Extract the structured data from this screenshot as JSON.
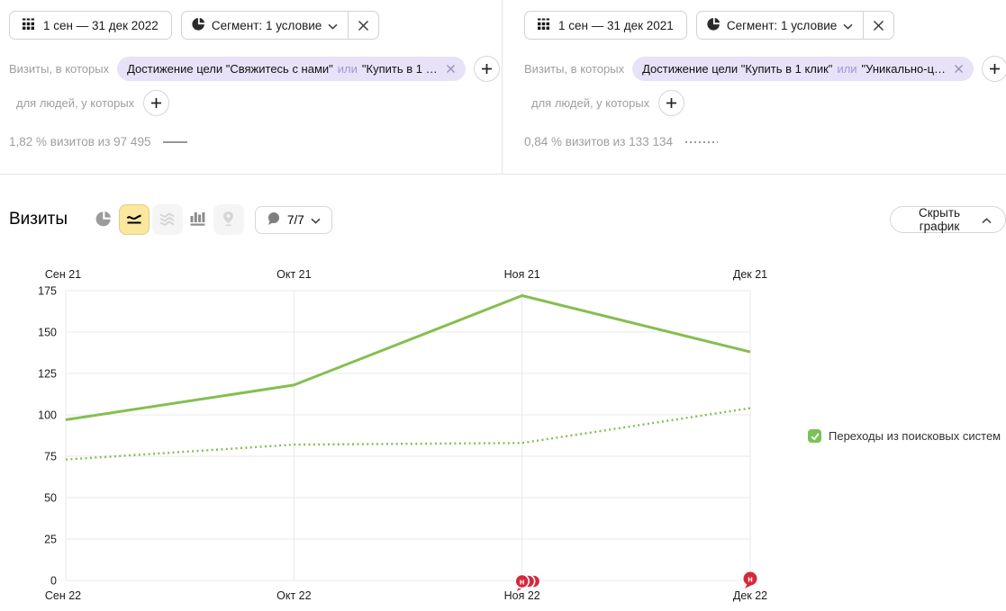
{
  "panels": [
    {
      "date_range": "1 сен — 31 дек 2022",
      "segment_label": "Сегмент: 1 условие",
      "visits_condition_label": "Визиты, в которых",
      "chip": {
        "before": "Достижение цели \"Свяжитесь с нами\"",
        "or_word": "или",
        "after": "\"Купить в 1 …"
      },
      "people_condition_label": "для людей, у которых",
      "summary": "1,82 % визитов из 97 495",
      "line_style": "solid"
    },
    {
      "date_range": "1 сен — 31 дек 2021",
      "segment_label": "Сегмент: 1 условие",
      "visits_condition_label": "Визиты, в которых",
      "chip": {
        "before": "Достижение цели \"Купить в 1 клик\"",
        "or_word": "или",
        "after": "\"Уникально-ц…"
      },
      "people_condition_label": "для людей, у которых",
      "summary": "0,84 % визитов из 133 134",
      "line_style": "dotted"
    }
  ],
  "toolbar": {
    "title": "Визиты",
    "comments_label": "7/7",
    "hide_chart_label": "Скрыть график"
  },
  "chart_data": {
    "type": "line",
    "title": "Визиты",
    "top_axis": [
      "Сен 21",
      "Окт 21",
      "Ноя 21",
      "Дек 21"
    ],
    "bottom_axis": [
      "Сен 22",
      "Окт 22",
      "Ноя 22",
      "Дек 22"
    ],
    "y_ticks": [
      0,
      25,
      50,
      75,
      100,
      125,
      150,
      175
    ],
    "ylim": [
      0,
      175
    ],
    "grid": true,
    "line_color": "#84bf50",
    "series": [
      {
        "name": "1 сен — 31 дек 2022",
        "style": "solid",
        "values": [
          97,
          118,
          172,
          138
        ]
      },
      {
        "name": "1 сен — 31 дек 2021",
        "style": "dotted",
        "values": [
          73,
          82,
          83,
          104
        ]
      }
    ],
    "legend": "Переходы из поисковых систем",
    "legend_color": "#79c257",
    "legend_position": "right",
    "annotation_color": "#d6283c",
    "annotations": [
      {
        "month": "Ноя 22",
        "index": 2,
        "count": 3,
        "letter": "н"
      },
      {
        "month": "Дек 22",
        "index": 3,
        "count": 1,
        "letter": "н"
      }
    ]
  }
}
